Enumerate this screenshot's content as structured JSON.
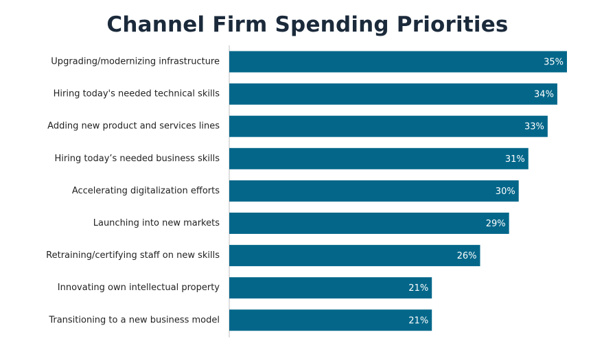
{
  "chart_data": {
    "type": "bar",
    "orientation": "horizontal",
    "title": "Channel Firm Spending Priorities",
    "xlabel": "",
    "ylabel": "",
    "categories": [
      "Upgrading/modernizing  infrastructure",
      "Hiring today's needed  technical skills",
      "Adding new product and services lines",
      "Hiring today’s needed  business skills",
      "Accelerating digitalization efforts",
      "Launching into new markets",
      "Retraining/certifying staff on new skills",
      "Innovating own intellectual property",
      "Transitioning to a new business model"
    ],
    "values": [
      35,
      34,
      33,
      31,
      30,
      29,
      26,
      21,
      21
    ],
    "value_labels": [
      "35%",
      "34%",
      "33%",
      "31%",
      "30%",
      "29%",
      "26%",
      "21%",
      "21%"
    ],
    "unit": "%",
    "xlim": [
      0,
      35
    ],
    "grid": false,
    "legend": "none",
    "colors": {
      "bar": "#04678a",
      "title": "#1b2a3b",
      "axis": "#bfbfbf"
    }
  }
}
